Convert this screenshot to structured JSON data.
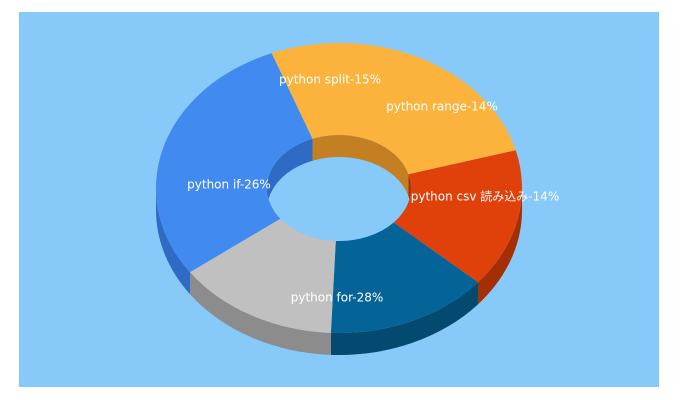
{
  "chart_data": {
    "type": "pie",
    "style": "3d-donut",
    "colors": {
      "background": "#87cafa"
    },
    "slices": [
      {
        "label": "python for-28%",
        "value": 28,
        "color": "#418bf0",
        "side_color": "#2f6bc4"
      },
      {
        "label": "python if-26%",
        "value": 26,
        "color": "#fbb33d",
        "side_color": "#c47f22"
      },
      {
        "label": "python split-15%",
        "value": 15,
        "color": "#e0410a",
        "side_color": "#a52f05"
      },
      {
        "label": "python range-14%",
        "value": 14,
        "color": "#046497",
        "side_color": "#034a70"
      },
      {
        "label": "python csv 読み込み-14%",
        "value": 14,
        "color": "#c0c0c0",
        "side_color": "#8c8c8c"
      }
    ]
  }
}
